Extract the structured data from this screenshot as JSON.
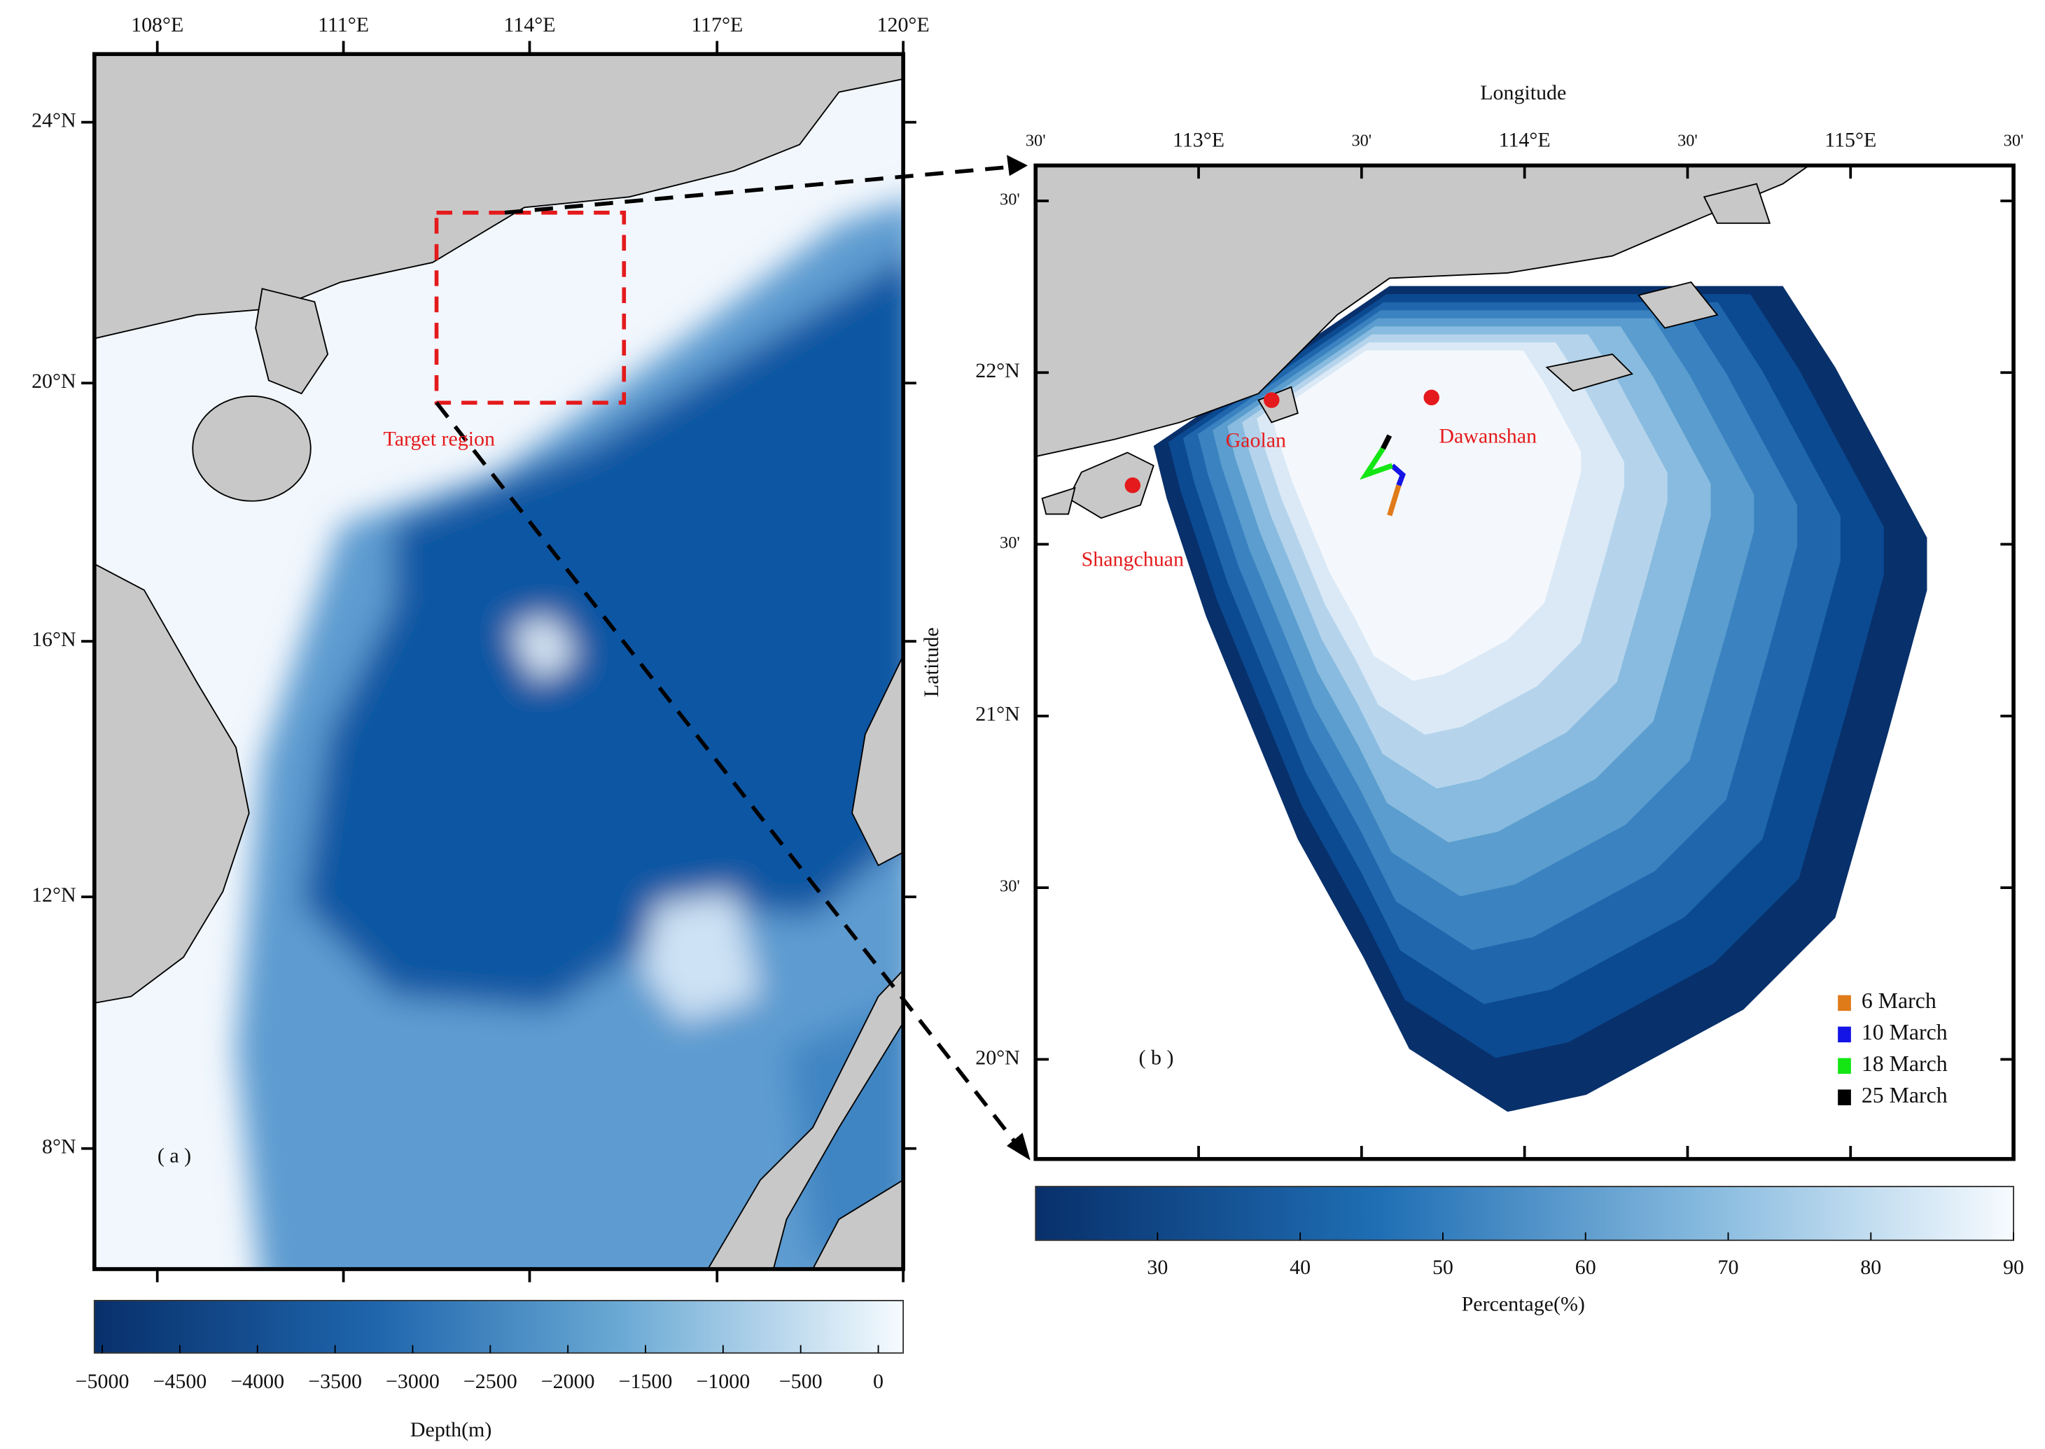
{
  "panel_a": {
    "label": "( a )",
    "annotation": "Target region",
    "lon_ticks": [
      "108°E",
      "111°E",
      "114°E",
      "117°E",
      "120°E"
    ],
    "lat_ticks": [
      "24°N",
      "20°N",
      "16°N",
      "12°N",
      "8°N"
    ],
    "colorbar": {
      "ticks": [
        "−5000",
        "−4500",
        "−4000",
        "−3500",
        "−3000",
        "−2500",
        "−2000",
        "−1500",
        "−1000",
        "−500",
        "0"
      ],
      "label": "Depth(m)"
    }
  },
  "panel_b": {
    "label": "( b )",
    "x_axis_label": "Longitude",
    "y_axis_label": "Latitude",
    "lon_ticks": [
      "30'",
      "113°E",
      "30'",
      "114°E",
      "30'",
      "115°E",
      "30'"
    ],
    "lat_ticks": [
      "30'",
      "22°N",
      "30'",
      "21°N",
      "30'",
      "20°N"
    ],
    "places": [
      "Gaolan",
      "Dawanshan",
      "Shangchuan"
    ],
    "legend": [
      {
        "label": "6  March",
        "color": "#e07b1a"
      },
      {
        "label": "10 March",
        "color": "#1414e6"
      },
      {
        "label": "18 March",
        "color": "#14e614"
      },
      {
        "label": "25 March",
        "color": "#000000"
      }
    ],
    "colorbar": {
      "ticks": [
        "30",
        "40",
        "50",
        "60",
        "70",
        "80",
        "90"
      ],
      "label": "Percentage(%)"
    }
  }
}
